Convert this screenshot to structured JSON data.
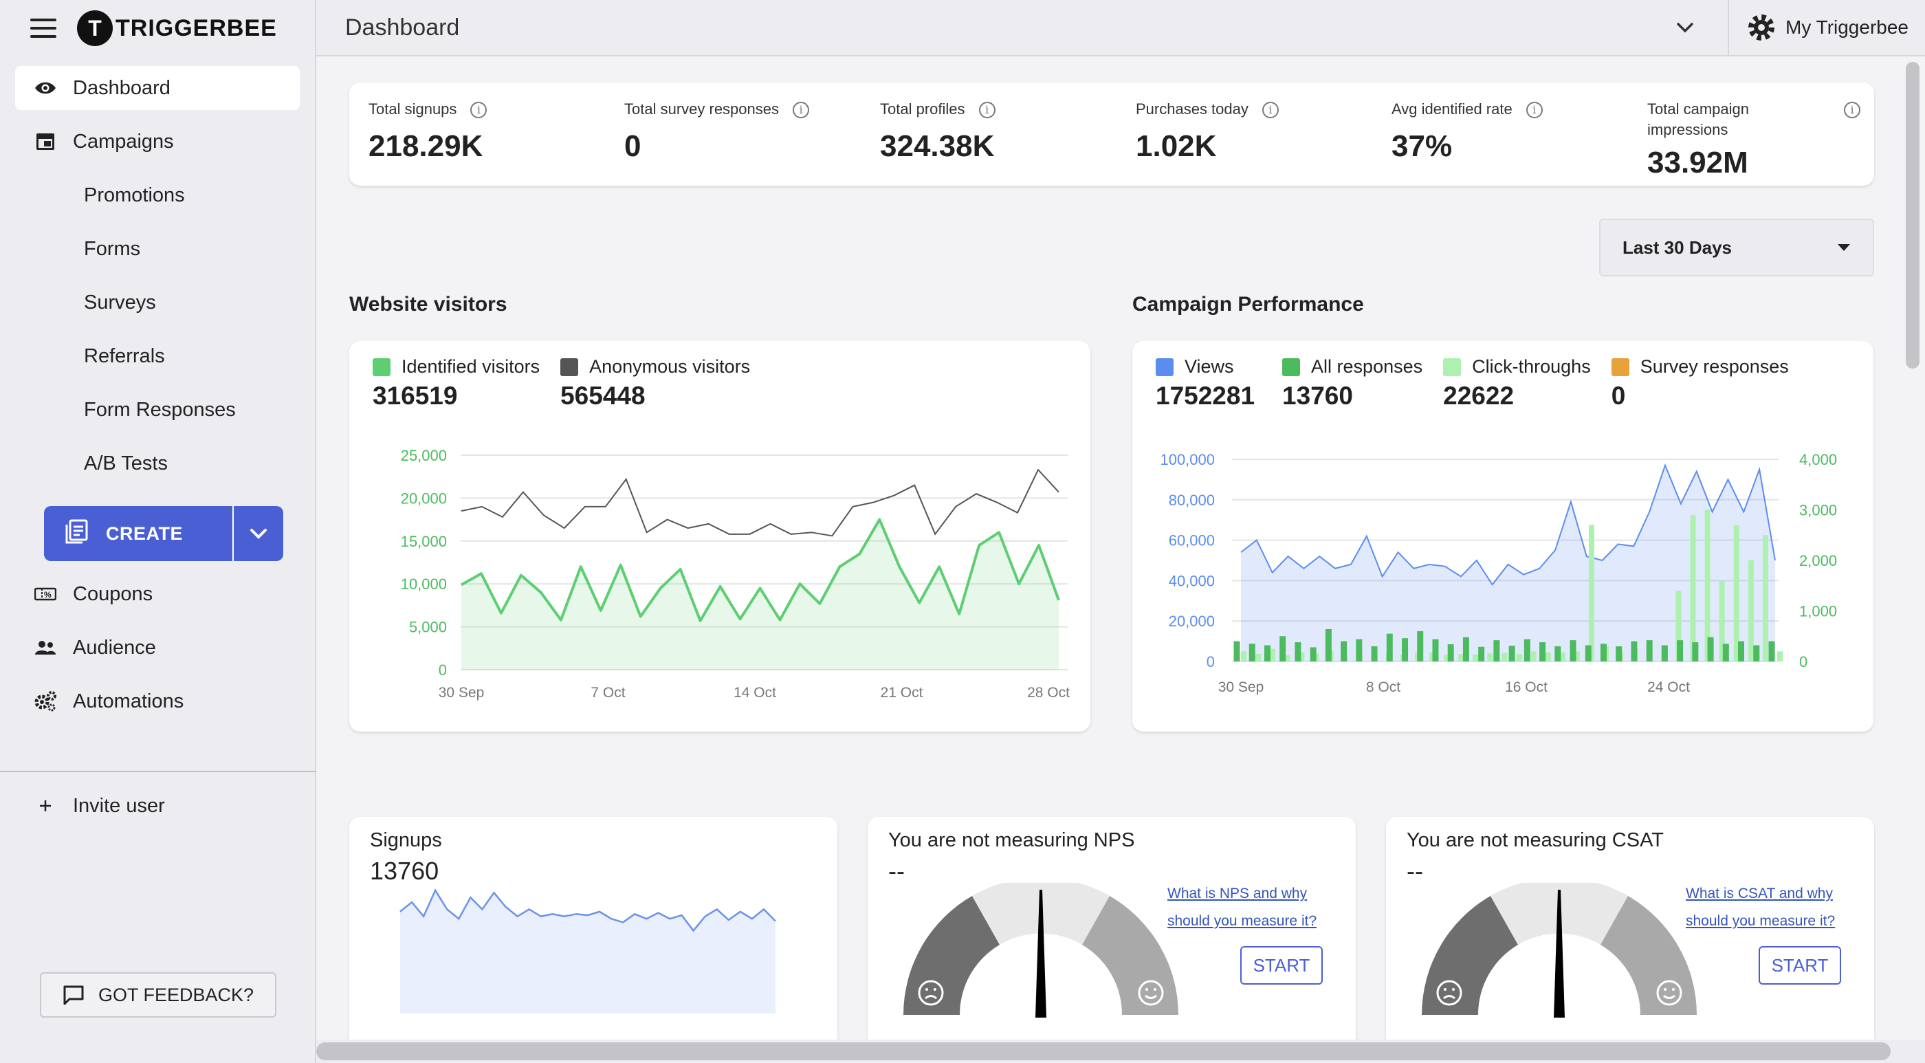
{
  "app": {
    "logo_letter": "T",
    "name": "TRIGGERBEE"
  },
  "topbar": {
    "title": "Dashboard",
    "account_label": "My Triggerbee"
  },
  "sidebar": {
    "items": [
      {
        "label": "Dashboard"
      },
      {
        "label": "Campaigns"
      },
      {
        "label": "Promotions"
      },
      {
        "label": "Forms"
      },
      {
        "label": "Surveys"
      },
      {
        "label": "Referrals"
      },
      {
        "label": "Form Responses"
      },
      {
        "label": "A/B Tests"
      },
      {
        "label": "Coupons"
      },
      {
        "label": "Audience"
      },
      {
        "label": "Automations"
      },
      {
        "label": "Invite user"
      }
    ],
    "create_label": "CREATE",
    "feedback_label": "GOT FEEDBACK?"
  },
  "kpis": [
    {
      "label": "Total signups",
      "value": "218.29K"
    },
    {
      "label": "Total survey responses",
      "value": "0"
    },
    {
      "label": "Total profiles",
      "value": "324.38K"
    },
    {
      "label": "Purchases today",
      "value": "1.02K"
    },
    {
      "label": "Avg identified rate",
      "value": "37%"
    },
    {
      "label": "Total campaign impressions",
      "value": "33.92M"
    }
  ],
  "info_glyph": "i",
  "date_range": {
    "selected": "Last 30 Days"
  },
  "website_visitors": {
    "title": "Website visitors",
    "legend": [
      {
        "label": "Identified visitors",
        "value": "316519",
        "color": "#5dcf72"
      },
      {
        "label": "Anonymous visitors",
        "value": "565448",
        "color": "#555555"
      }
    ]
  },
  "campaign_performance": {
    "title": "Campaign Performance",
    "legend": [
      {
        "label": "Views",
        "value": "1752281",
        "color": "#5b8def"
      },
      {
        "label": "All responses",
        "value": "13760",
        "color": "#4cbb5e"
      },
      {
        "label": "Click-throughs",
        "value": "22622",
        "color": "#aef0b0"
      },
      {
        "label": "Survey responses",
        "value": "0",
        "color": "#e8a23a"
      }
    ]
  },
  "signups_card": {
    "label": "Signups",
    "value": "13760"
  },
  "nps_card": {
    "label": "You are not measuring NPS",
    "value": "--",
    "link_line1": "What is NPS and why",
    "link_line2": "should you measure it?",
    "button": "START"
  },
  "csat_card": {
    "label": "You are not measuring CSAT",
    "value": "--",
    "link_line1": "What is CSAT and why",
    "link_line2": "should you measure it?",
    "button": "START"
  },
  "chart_data": [
    {
      "type": "line",
      "x_tick_labels": [
        "30 Sep",
        "7 Oct",
        "14 Oct",
        "21 Oct",
        "28 Oct"
      ],
      "ylim": [
        0,
        25000
      ],
      "y_ticks": [
        "0",
        "5,000",
        "10,000",
        "15,000",
        "20,000",
        "25,000"
      ],
      "series": [
        {
          "name": "Anonymous visitors",
          "color": "#555555",
          "values": [
            18500,
            19000,
            17800,
            20700,
            18000,
            16500,
            19000,
            19000,
            22200,
            16000,
            17500,
            16500,
            17000,
            15800,
            15800,
            17000,
            15800,
            16000,
            15600,
            19000,
            19500,
            20300,
            21500,
            15800,
            19000,
            20500,
            19500,
            18300,
            23300,
            20700
          ]
        },
        {
          "name": "Identified visitors",
          "color": "#5dcf72",
          "values": [
            9900,
            11200,
            6600,
            11000,
            9000,
            5800,
            12000,
            6900,
            12200,
            6200,
            9500,
            11700,
            5700,
            9700,
            5900,
            9500,
            5800,
            10000,
            7700,
            12000,
            13500,
            17500,
            12000,
            7800,
            12000,
            6500,
            14500,
            16000,
            10000,
            14500,
            8100
          ]
        }
      ]
    },
    {
      "type": "bar",
      "x_tick_labels": [
        "30 Sep",
        "8 Oct",
        "16 Oct",
        "24 Oct"
      ],
      "ylim_left": [
        0,
        100000
      ],
      "y_ticks_left": [
        "0",
        "20,000",
        "40,000",
        "60,000",
        "80,000",
        "100,000"
      ],
      "ylim_right": [
        0,
        4000
      ],
      "y_ticks_right": [
        "0",
        "1,000",
        "2,000",
        "3,000",
        "4,000"
      ],
      "series": [
        {
          "name": "Views",
          "color": "#5b8def",
          "axis": "left",
          "type": "area",
          "values": [
            54000,
            60000,
            44000,
            52000,
            46000,
            52000,
            46000,
            48000,
            62000,
            42000,
            54000,
            46000,
            48000,
            47000,
            42000,
            50000,
            38000,
            48000,
            43000,
            46000,
            55000,
            79000,
            52000,
            50000,
            58000,
            57000,
            74000,
            97000,
            78000,
            94000,
            74000,
            90000,
            74000,
            95000,
            50000
          ]
        },
        {
          "name": "All responses",
          "color": "#4cbb5e",
          "axis": "right",
          "values": [
            400,
            350,
            320,
            500,
            380,
            280,
            640,
            400,
            440,
            300,
            550,
            460,
            600,
            440,
            340,
            480,
            290,
            420,
            310,
            440,
            380,
            300,
            420,
            320,
            350,
            300,
            400,
            420,
            320,
            420,
            380,
            480,
            350,
            400,
            320,
            400
          ]
        },
        {
          "name": "Click-throughs",
          "color": "#aef0b0",
          "axis": "right",
          "values": [
            200,
            150,
            250,
            120,
            180,
            160,
            220,
            120,
            170,
            160,
            150,
            140,
            170,
            180,
            130,
            150,
            140,
            160,
            170,
            150,
            200,
            180,
            180,
            200,
            2700,
            300,
            200,
            250,
            200,
            300,
            1400,
            2900,
            3000,
            1600,
            2700,
            2000,
            2500,
            200
          ]
        },
        {
          "name": "Survey responses",
          "color": "#e8a23a",
          "axis": "right",
          "values": [
            0
          ]
        }
      ]
    },
    {
      "type": "area",
      "series": [
        {
          "name": "Signups",
          "color": "#6a93e8",
          "values": [
            430,
            470,
            410,
            520,
            440,
            400,
            490,
            440,
            510,
            450,
            410,
            440,
            410,
            420,
            410,
            420,
            415,
            430,
            400,
            385,
            420,
            400,
            425,
            400,
            415,
            350,
            410,
            440,
            395,
            430,
            400,
            440,
            390
          ]
        }
      ]
    }
  ]
}
